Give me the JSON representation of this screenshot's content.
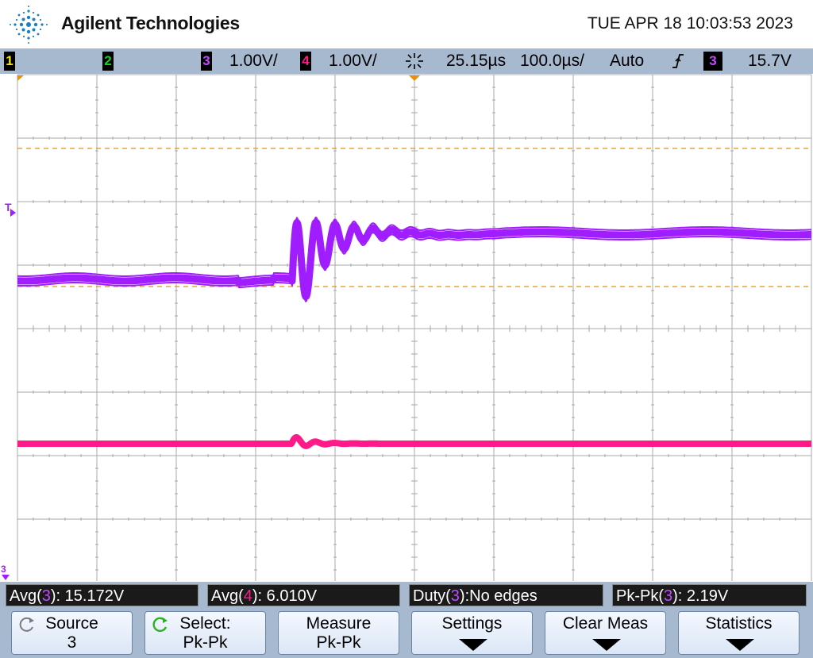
{
  "header": {
    "brand": "Agilent Technologies",
    "datetime": "TUE APR 18 10:03:53 2023"
  },
  "status": {
    "channels": [
      {
        "id": "1",
        "color": "#f5e600"
      },
      {
        "id": "2",
        "color": "#16d21a"
      },
      {
        "id": "3",
        "color": "#c14cff",
        "scale": "1.00V/"
      },
      {
        "id": "4",
        "color": "#ff1a8a",
        "scale": "1.00V/"
      }
    ],
    "delay": "25.15µs",
    "timebase": "100.0µs/",
    "trigger_mode": "Auto",
    "trigger_channel": "3",
    "trigger_level": "15.7V"
  },
  "colors": {
    "ch3": "#9f1dff",
    "ch4": "#ff1a8a",
    "cursor": "#e8900c",
    "grid": "#a9a9a9",
    "bar": "#a7b9cf"
  },
  "markers": {
    "trigger_label": "T",
    "ground_label": "3"
  },
  "measurements": [
    {
      "prefix": "Avg(",
      "ch": "3",
      "suffix": "): 15.172V",
      "ch_color": "#c14cff"
    },
    {
      "prefix": "Avg(",
      "ch": "4",
      "suffix": "): 6.010V",
      "ch_color": "#ff1a8a"
    },
    {
      "prefix": "Duty(",
      "ch": "3",
      "suffix": "):No edges",
      "ch_color": "#c14cff"
    },
    {
      "prefix": "Pk-Pk(",
      "ch": "3",
      "suffix": "): 2.19V",
      "ch_color": "#c14cff"
    }
  ],
  "softkeys": [
    {
      "line1": "Source",
      "line2": "3"
    },
    {
      "line1": "Select:",
      "line2": "Pk-Pk"
    },
    {
      "line1": "Measure",
      "line2": "Pk-Pk"
    },
    {
      "line1": "Settings",
      "line2": ""
    },
    {
      "line1": "Clear Meas",
      "line2": ""
    },
    {
      "line1": "Statistics",
      "line2": ""
    }
  ]
}
